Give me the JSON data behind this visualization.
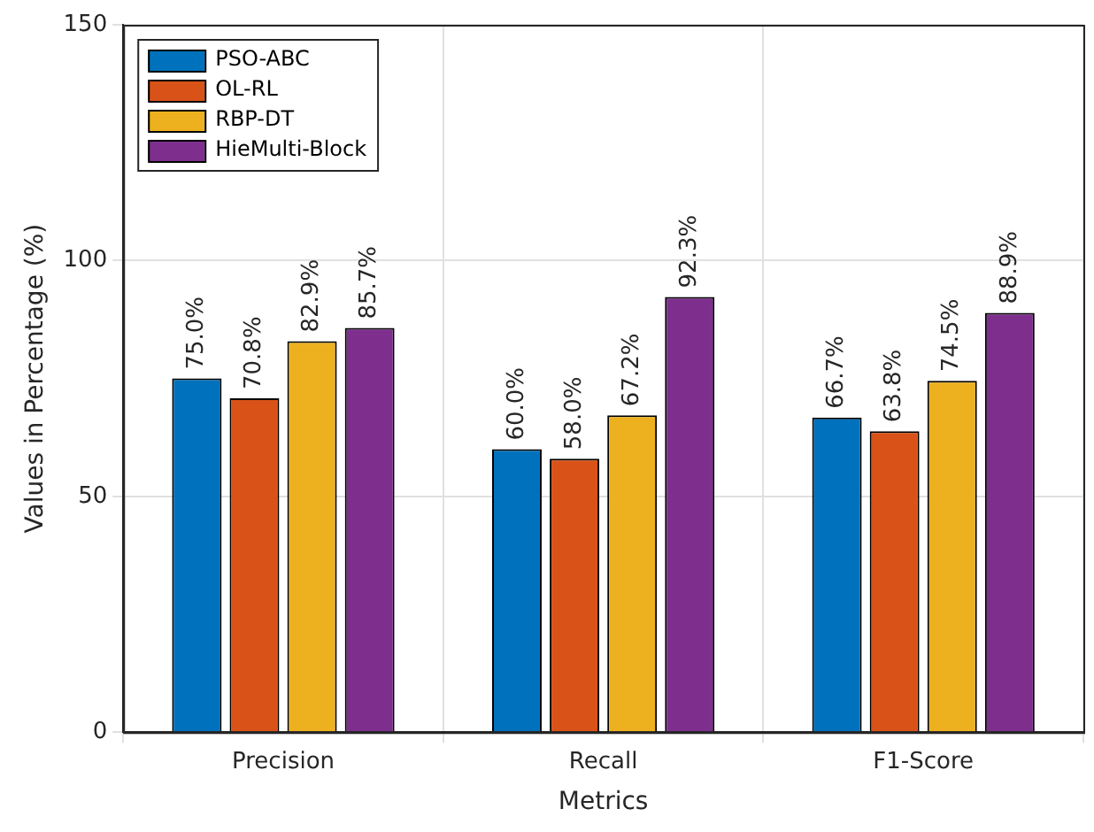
{
  "chart_data": {
    "type": "bar",
    "xlabel": "Metrics",
    "ylabel": "Values in Percentage (%)",
    "categories": [
      "Precision",
      "Recall",
      "F1-Score"
    ],
    "series": [
      {
        "name": "PSO-ABC",
        "color": "#0072bd",
        "values": [
          75.0,
          60.0,
          66.7
        ],
        "value_labels": [
          "75.0%",
          "60.0%",
          "66.7%"
        ]
      },
      {
        "name": "OL-RL",
        "color": "#d95319",
        "values": [
          70.8,
          58.0,
          63.8
        ],
        "value_labels": [
          "70.8%",
          "58.0%",
          "63.8%"
        ]
      },
      {
        "name": "RBP-DT",
        "color": "#edb120",
        "values": [
          82.9,
          67.2,
          74.5
        ],
        "value_labels": [
          "82.9%",
          "67.2%",
          "74.5%"
        ]
      },
      {
        "name": "HieMulti-Block",
        "color": "#7e2f8e",
        "values": [
          85.7,
          92.3,
          88.9
        ],
        "value_labels": [
          "85.7%",
          "92.3%",
          "88.9%"
        ]
      }
    ],
    "ylim": [
      0,
      150
    ],
    "yticks": [
      0,
      50,
      100,
      150
    ],
    "grid": true,
    "legend": "top left"
  }
}
